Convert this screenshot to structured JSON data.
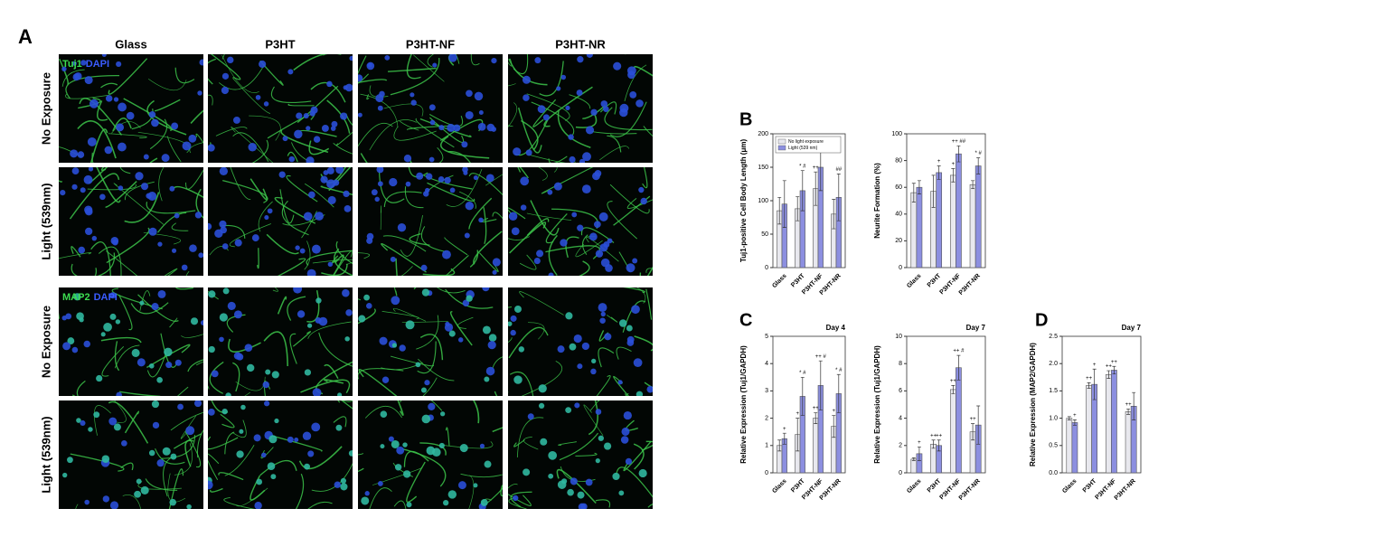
{
  "panel_a": {
    "label": "A",
    "columns": [
      "Glass",
      "P3HT",
      "P3HT-NF",
      "P3HT-NR"
    ],
    "rows": [
      "No Exposure",
      "Light (539nm)",
      "No Exposure",
      "Light (539nm)"
    ],
    "stains": [
      {
        "marker": "Tuj1",
        "nucleus": "DAPI"
      },
      {
        "marker": "MAP2",
        "nucleus": "DAPI"
      }
    ]
  },
  "chart_data": [
    {
      "type": "bar",
      "panel": "B",
      "y_label": "Tuj1-positive Cell Body Length (μm)",
      "categories": [
        "Glass",
        "P3HT",
        "P3HT-NF",
        "P3HT-NR"
      ],
      "series": [
        {
          "name": "No light exposure",
          "color": "#e8e8ee",
          "values": [
            85,
            88,
            118,
            80
          ],
          "errors": [
            20,
            18,
            25,
            22
          ],
          "markers": [
            null,
            null,
            "++",
            null
          ]
        },
        {
          "name": "Light (539 nm)",
          "color": "#8c8fe0",
          "values": [
            95,
            115,
            150,
            105
          ],
          "errors": [
            35,
            30,
            35,
            35
          ],
          "markers": [
            null,
            "* #",
            "++ ##",
            "##"
          ]
        }
      ],
      "ylim": [
        0,
        200
      ],
      "yticks": [
        0,
        50,
        100,
        150,
        200
      ],
      "legend": "top-left"
    },
    {
      "type": "bar",
      "y_label": "Neurite Formation (%)",
      "categories": [
        "Glass",
        "P3HT",
        "P3HT-NF",
        "P3HT-NR"
      ],
      "series": [
        {
          "name": "No light exposure",
          "color": "#e8e8ee",
          "values": [
            56,
            57,
            69,
            62
          ],
          "errors": [
            7,
            12,
            5,
            3
          ],
          "markers": [
            null,
            null,
            "+",
            null
          ]
        },
        {
          "name": "Light (539 nm)",
          "color": "#8c8fe0",
          "values": [
            60,
            71,
            85,
            76
          ],
          "errors": [
            5,
            5,
            6,
            6
          ],
          "markers": [
            null,
            "+",
            "++ ##",
            "* #"
          ]
        }
      ],
      "ylim": [
        0,
        100
      ],
      "yticks": [
        0,
        20,
        40,
        60,
        80,
        100
      ]
    },
    {
      "type": "bar",
      "panel": "C",
      "title": "Day 4",
      "y_label": "Relative Expression (Tuj1/GAPDH)",
      "categories": [
        "Glass",
        "P3HT",
        "P3HT-NF",
        "P3HT-NR"
      ],
      "series": [
        {
          "name": "No light exposure",
          "color": "#e8e8ee",
          "values": [
            1.0,
            1.4,
            2.0,
            1.7
          ],
          "errors": [
            0.2,
            0.6,
            0.2,
            0.4
          ],
          "markers": [
            null,
            "+",
            "++",
            "+"
          ]
        },
        {
          "name": "Light (539 nm)",
          "color": "#8c8fe0",
          "values": [
            1.25,
            2.8,
            3.2,
            2.9
          ],
          "errors": [
            0.2,
            0.7,
            0.9,
            0.7
          ],
          "markers": [
            "+",
            "* #",
            "++ #",
            "* #"
          ]
        }
      ],
      "ylim": [
        0,
        5
      ],
      "yticks": [
        0,
        1,
        2,
        3,
        4,
        5
      ]
    },
    {
      "type": "bar",
      "title": "Day 7",
      "y_label": "Relative Expression (Tuj1/GAPDH)",
      "categories": [
        "Glass",
        "P3HT",
        "P3HT-NF",
        "P3HT-NR"
      ],
      "series": [
        {
          "name": "No light exposure",
          "color": "#e8e8ee",
          "values": [
            1.0,
            2.1,
            6.1,
            3.0
          ],
          "errors": [
            0.1,
            0.3,
            0.3,
            0.6
          ],
          "markers": [
            null,
            "++",
            "++",
            "++"
          ]
        },
        {
          "name": "Light (539 nm)",
          "color": "#8c8fe0",
          "values": [
            1.4,
            2.0,
            7.7,
            3.5
          ],
          "errors": [
            0.5,
            0.4,
            0.9,
            1.4
          ],
          "markers": [
            "+",
            "++",
            "++ #",
            null
          ]
        }
      ],
      "ylim": [
        0,
        10
      ],
      "yticks": [
        0,
        2,
        4,
        6,
        8,
        10
      ]
    },
    {
      "type": "bar",
      "panel": "D",
      "title": "Day 7",
      "y_label": "Relative Expression (MAP2/GAPDH)",
      "categories": [
        "Glass",
        "P3HT",
        "P3HT-NF",
        "P3HT-NR"
      ],
      "series": [
        {
          "name": "No light exposure",
          "color": "#e8e8ee",
          "values": [
            1.0,
            1.6,
            1.8,
            1.12
          ],
          "errors": [
            0.03,
            0.05,
            0.07,
            0.05
          ],
          "markers": [
            null,
            "++",
            "++",
            "++"
          ]
        },
        {
          "name": "Light (539 nm)",
          "color": "#8c8fe0",
          "values": [
            0.92,
            1.62,
            1.88,
            1.22
          ],
          "errors": [
            0.05,
            0.28,
            0.07,
            0.25
          ],
          "markers": [
            "+",
            "+",
            "++",
            null
          ]
        }
      ],
      "ylim": [
        0,
        2.5
      ],
      "yticks": [
        {
          "value": 0,
          "label": "0.0"
        },
        {
          "value": 0.5,
          "label": "0.5"
        },
        {
          "value": 1,
          "label": "1.0"
        },
        {
          "value": 1.5,
          "label": "1.5"
        },
        {
          "value": 2,
          "label": "2.0"
        },
        {
          "value": 2.5,
          "label": "2.5"
        }
      ]
    }
  ]
}
